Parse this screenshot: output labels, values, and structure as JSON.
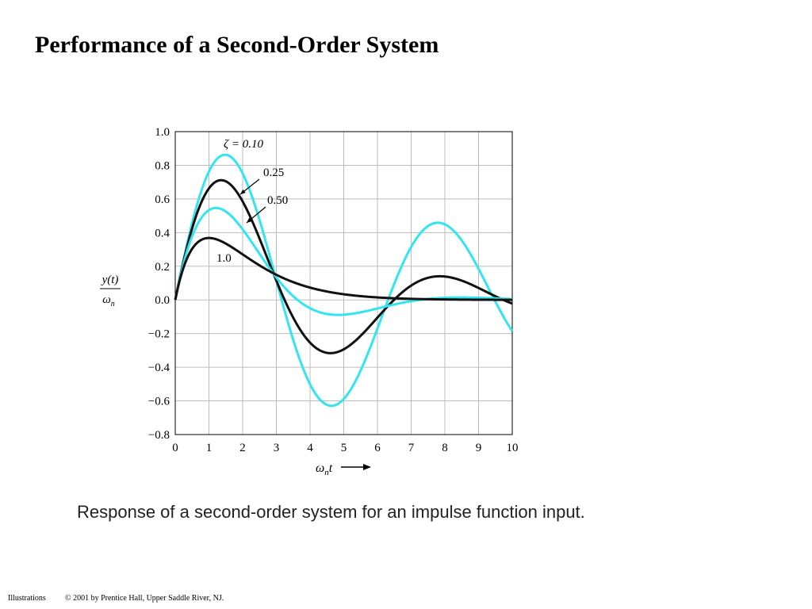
{
  "slide": {
    "title": "Performance of a Second-Order System",
    "caption": "Response of a second-order system for an impulse function input.",
    "footer_left": "Illustrations",
    "footer_right": "© 2001 by Prentice Hall, Upper Saddle River, NJ."
  },
  "chart_data": {
    "type": "line",
    "title": "",
    "xlabel": "ω_n t",
    "ylabel": "y(t) / ω_n",
    "xlim": [
      0,
      10
    ],
    "ylim": [
      -0.8,
      1.0
    ],
    "xticks": [
      0,
      1,
      2,
      3,
      4,
      5,
      6,
      7,
      8,
      9,
      10
    ],
    "xtick_labels": [
      "0",
      "1",
      "2",
      "3",
      "4",
      "5",
      "6",
      "7",
      "8",
      "9",
      "10"
    ],
    "yticks": [
      1.0,
      0.8,
      0.6,
      0.4,
      0.2,
      0.0,
      -0.2,
      -0.4,
      -0.6,
      -0.8
    ],
    "ytick_labels": [
      "1.0",
      "0.8",
      "0.6",
      "0.4",
      "0.2",
      "0.0",
      "−0.2",
      "−0.4",
      "−0.6",
      "−0.8"
    ],
    "grid": true,
    "x": [
      0,
      0.5,
      1,
      1.5,
      2,
      2.5,
      3,
      3.5,
      4,
      4.5,
      5,
      5.5,
      6,
      6.5,
      7,
      7.5,
      8,
      8.5,
      9,
      9.5,
      10
    ],
    "series": [
      {
        "name": "ζ = 0.10",
        "zeta": 0.1,
        "color": "#33e5f0",
        "values": [
          0,
          0.46,
          0.8,
          0.86,
          0.68,
          0.3,
          0.13,
          -0.35,
          -0.59,
          -0.65,
          -0.54,
          -0.3,
          -0.06,
          0.22,
          0.37,
          0.43,
          0.38,
          0.23,
          0.04,
          -0.14,
          -0.16
        ]
      },
      {
        "name": "0.25",
        "zeta": 0.25,
        "color": "#111111",
        "values": [
          0,
          0.42,
          0.66,
          0.69,
          0.53,
          0.27,
          0.13,
          -0.15,
          -0.29,
          -0.32,
          -0.26,
          -0.14,
          -0.01,
          0.07,
          0.1,
          0.11,
          0.08,
          0.03,
          -0.01,
          -0.03,
          -0.03
        ]
      },
      {
        "name": "0.50",
        "zeta": 0.5,
        "color": "#33e5f0",
        "values": [
          0,
          0.35,
          0.52,
          0.51,
          0.37,
          0.18,
          0.13,
          -0.06,
          -0.09,
          -0.09,
          -0.08,
          -0.05,
          -0.02,
          0.0,
          0.02,
          0.02,
          0.02,
          0.01,
          0.0,
          0.0,
          0.0
        ]
      },
      {
        "name": "1.0",
        "zeta": 1.0,
        "color": "#111111",
        "values": [
          0,
          0.3,
          0.37,
          0.33,
          0.27,
          0.21,
          0.15,
          0.11,
          0.07,
          0.05,
          0.03,
          0.02,
          0.01,
          0.01,
          0.01,
          0.0,
          0.0,
          0.0,
          0.0,
          0.0,
          0.0
        ]
      }
    ]
  }
}
